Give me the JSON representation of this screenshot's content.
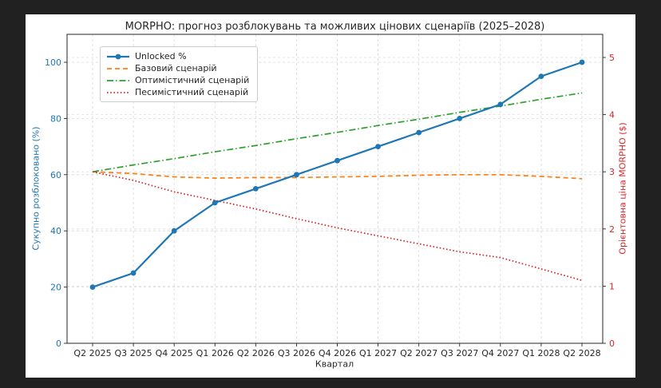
{
  "frame": {
    "background": "#212121",
    "figure_background": "#ffffff"
  },
  "chart_data": {
    "type": "line",
    "title": "MORPHO: прогноз розблокувань та можливих цінових сценаріїв (2025–2028)",
    "xlabel": "Квартал",
    "ylabel_left": "Сукупно розблоковано (%)",
    "ylabel_right": "Орієнтовна ціна MORPHO ($)",
    "grid": true,
    "legend_position": "upper-left",
    "categories": [
      "Q2 2025",
      "Q3 2025",
      "Q4 2025",
      "Q1 2026",
      "Q2 2026",
      "Q3 2026",
      "Q4 2026",
      "Q1 2027",
      "Q2 2027",
      "Q3 2027",
      "Q4 2027",
      "Q1 2028",
      "Q2 2028"
    ],
    "left_axis": {
      "ticks": [
        0,
        20,
        40,
        60,
        80,
        100
      ],
      "range": [
        0,
        110
      ],
      "color": "#1f77b4"
    },
    "right_axis": {
      "ticks": [
        0,
        1,
        2,
        3,
        4,
        5
      ],
      "range": [
        0,
        5.4
      ],
      "color": "#d62728"
    },
    "series": [
      {
        "name": "Unlocked %",
        "axis": "left",
        "color": "#1f77b4",
        "style": "solid",
        "marker": "circle",
        "values": [
          20,
          25,
          40,
          50,
          55,
          60,
          65,
          70,
          75,
          80,
          85,
          95,
          100
        ]
      },
      {
        "name": "Базовий сценарій",
        "axis": "right",
        "color": "#ff7f0e",
        "style": "dashed",
        "marker": "none",
        "values": [
          3.0,
          2.97,
          2.91,
          2.89,
          2.9,
          2.9,
          2.91,
          2.92,
          2.94,
          2.95,
          2.95,
          2.92,
          2.88
        ]
      },
      {
        "name": "Оптимістичний сценарій",
        "axis": "right",
        "color": "#2ca02c",
        "style": "dashdot",
        "marker": "none",
        "values": [
          3.0,
          3.12,
          3.23,
          3.35,
          3.46,
          3.58,
          3.69,
          3.81,
          3.92,
          4.04,
          4.15,
          4.27,
          4.38
        ]
      },
      {
        "name": "Песимістичний сценарій",
        "axis": "right",
        "color": "#d62728",
        "style": "dotted",
        "marker": "none",
        "values": [
          3.0,
          2.85,
          2.65,
          2.5,
          2.35,
          2.18,
          2.02,
          1.88,
          1.74,
          1.6,
          1.5,
          1.3,
          1.1
        ]
      }
    ]
  }
}
